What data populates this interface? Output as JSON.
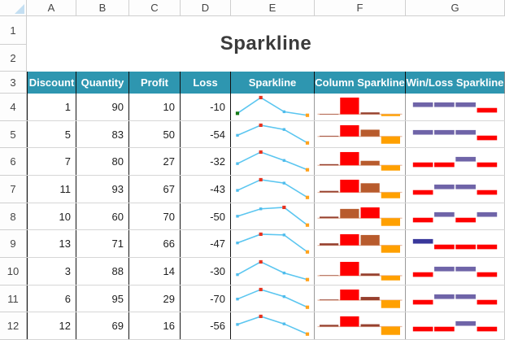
{
  "app": {
    "title": "Sparkline"
  },
  "grid": {
    "column_letters": [
      "A",
      "B",
      "C",
      "D",
      "E",
      "F",
      "G"
    ],
    "row_numbers": [
      "1",
      "2",
      "3",
      "4",
      "5",
      "6",
      "7",
      "8",
      "9",
      "10",
      "11",
      "12"
    ]
  },
  "table": {
    "headers": [
      "Discount",
      "Quantity",
      "Profit",
      "Loss",
      "Sparkline",
      "Column Sparkline",
      "Win/Loss Sparkline"
    ],
    "rows": [
      {
        "discount": "1",
        "quantity": "90",
        "profit": "10",
        "loss": "-10",
        "values": [
          1,
          90,
          10,
          -10
        ],
        "winloss": [
          "up",
          "up",
          "up",
          "down"
        ],
        "first_marker": "green"
      },
      {
        "discount": "5",
        "quantity": "83",
        "profit": "50",
        "loss": "-54",
        "values": [
          5,
          83,
          50,
          -54
        ],
        "winloss": [
          "up",
          "up",
          "up",
          "down"
        ]
      },
      {
        "discount": "7",
        "quantity": "80",
        "profit": "27",
        "loss": "-32",
        "values": [
          7,
          80,
          27,
          -32
        ],
        "winloss": [
          "down",
          "down",
          "up",
          "down"
        ]
      },
      {
        "discount": "11",
        "quantity": "93",
        "profit": "67",
        "loss": "-43",
        "values": [
          11,
          93,
          67,
          -43
        ],
        "winloss": [
          "down",
          "up",
          "up",
          "down"
        ]
      },
      {
        "discount": "10",
        "quantity": "60",
        "profit": "70",
        "loss": "-50",
        "values": [
          10,
          60,
          70,
          -50
        ],
        "winloss": [
          "down",
          "up",
          "down",
          "up"
        ]
      },
      {
        "discount": "13",
        "quantity": "71",
        "profit": "66",
        "loss": "-47",
        "values": [
          13,
          71,
          66,
          -47
        ],
        "winloss": [
          "up_dark",
          "down",
          "down",
          "down"
        ]
      },
      {
        "discount": "3",
        "quantity": "88",
        "profit": "14",
        "loss": "-30",
        "values": [
          3,
          88,
          14,
          -30
        ],
        "winloss": [
          "down",
          "up",
          "up",
          "down"
        ]
      },
      {
        "discount": "6",
        "quantity": "95",
        "profit": "29",
        "loss": "-70",
        "values": [
          6,
          95,
          29,
          -70
        ],
        "winloss": [
          "down",
          "up",
          "up",
          "down"
        ]
      },
      {
        "discount": "12",
        "quantity": "69",
        "profit": "16",
        "loss": "-56",
        "values": [
          12,
          69,
          16,
          -56
        ],
        "winloss": [
          "down",
          "down",
          "up",
          "down"
        ]
      }
    ]
  },
  "colors": {
    "header_bg": "#2E96B0",
    "header_text": "#FFFFFF",
    "title_text": "#3B3B3B",
    "line": "#5BC6F0",
    "marker_default": "#4FBCEC",
    "marker_high": "#E8321E",
    "marker_last": "#FFA21C",
    "marker_first_green": "#157A15",
    "column_bar": "#B85B2D",
    "column_bar_small": "#96402E",
    "column_high": "#FF0000",
    "column_negative": "#FFA000",
    "column_axis": "#E9BDA8",
    "winloss_up": "#6F64A8",
    "winloss_up_dark": "#39389B",
    "winloss_down": "#FF0000"
  }
}
